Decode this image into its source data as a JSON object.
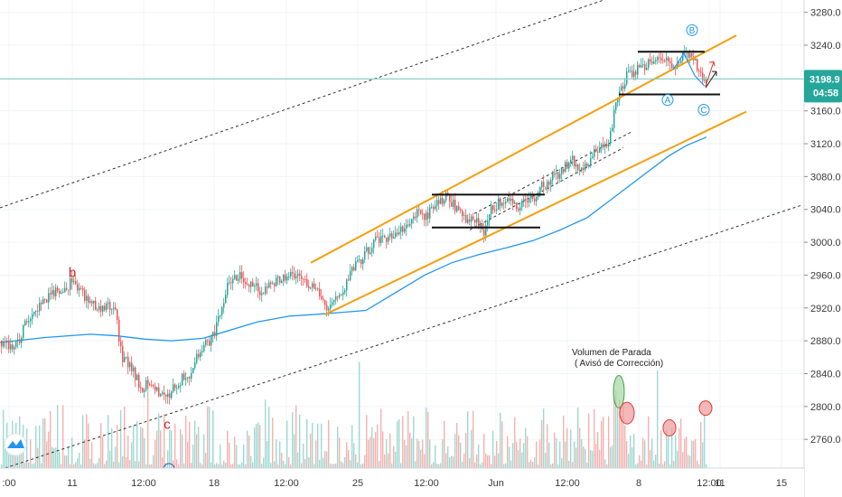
{
  "colors": {
    "background": "#ffffff",
    "grid": "#f0f3fa",
    "candle_up": "#26a69a",
    "candle_down": "#ef5350",
    "vol_up": "#9fd9d1",
    "vol_down": "#f4b2b0",
    "channel": "#f59e0b",
    "ma": "#2196f3",
    "level": "#111111",
    "current_line": "#7ccfc8",
    "price_tag": "#26a69a",
    "wave_red": "#c62828",
    "wave_blue": "#2196f3",
    "ellipse_green": "#a5d6a7",
    "ellipse_red": "#ef9a9a"
  },
  "chart_data": {
    "type": "candlestick",
    "y_axis": {
      "range": [
        2725,
        3295
      ],
      "ticks": [
        "3280.0",
        "3240.0",
        "3200.0",
        "3160.0",
        "3120.0",
        "3080.0",
        "3040.0",
        "3000.0",
        "2960.0",
        "2920.0",
        "2880.0",
        "2840.0",
        "2800.0",
        "2760.0"
      ]
    },
    "x_axis": {
      "range": [
        0,
        932
      ],
      "ticks": [
        {
          "label": ":00",
          "pos": 10
        },
        {
          "label": "11",
          "pos": 80
        },
        {
          "label": "12:00",
          "pos": 159
        },
        {
          "label": "18",
          "pos": 237
        },
        {
          "label": "12:00",
          "pos": 317
        },
        {
          "label": "25",
          "pos": 396
        },
        {
          "label": "12:00",
          "pos": 472
        },
        {
          "label": "Jun",
          "pos": 549
        },
        {
          "label": "12:00",
          "pos": 628
        },
        {
          "label": "8",
          "pos": 707
        },
        {
          "label": "12:00",
          "pos": 785
        },
        {
          "label": "11",
          "pos": 797
        },
        {
          "label": "15",
          "pos": 865
        }
      ]
    },
    "last_price": "3198.9",
    "countdown": "04:58",
    "price_path": [
      [
        0,
        2880
      ],
      [
        15,
        2870
      ],
      [
        30,
        2905
      ],
      [
        50,
        2930
      ],
      [
        70,
        2945
      ],
      [
        80,
        2952
      ],
      [
        95,
        2930
      ],
      [
        110,
        2915
      ],
      [
        125,
        2925
      ],
      [
        135,
        2860
      ],
      [
        145,
        2850
      ],
      [
        155,
        2820
      ],
      [
        165,
        2830
      ],
      [
        175,
        2815
      ],
      [
        185,
        2810
      ],
      [
        195,
        2830
      ],
      [
        210,
        2840
      ],
      [
        220,
        2870
      ],
      [
        232,
        2880
      ],
      [
        240,
        2900
      ],
      [
        250,
        2945
      ],
      [
        262,
        2960
      ],
      [
        275,
        2950
      ],
      [
        290,
        2940
      ],
      [
        305,
        2950
      ],
      [
        320,
        2965
      ],
      [
        335,
        2955
      ],
      [
        350,
        2945
      ],
      [
        362,
        2915
      ],
      [
        375,
        2935
      ],
      [
        390,
        2965
      ],
      [
        405,
        2990
      ],
      [
        420,
        3005
      ],
      [
        435,
        3010
      ],
      [
        450,
        3020
      ],
      [
        462,
        3035
      ],
      [
        470,
        3030
      ],
      [
        482,
        3045
      ],
      [
        495,
        3055
      ],
      [
        505,
        3040
      ],
      [
        515,
        3030
      ],
      [
        525,
        3025
      ],
      [
        535,
        3015
      ],
      [
        545,
        3045
      ],
      [
        560,
        3050
      ],
      [
        575,
        3045
      ],
      [
        590,
        3055
      ],
      [
        605,
        3075
      ],
      [
        618,
        3085
      ],
      [
        632,
        3100
      ],
      [
        645,
        3090
      ],
      [
        658,
        3110
      ],
      [
        672,
        3120
      ],
      [
        685,
        3185
      ],
      [
        695,
        3205
      ],
      [
        707,
        3210
      ],
      [
        720,
        3220
      ],
      [
        732,
        3225
      ],
      [
        745,
        3210
      ],
      [
        755,
        3230
      ],
      [
        765,
        3225
      ],
      [
        775,
        3205
      ],
      [
        781,
        3195
      ]
    ],
    "moving_average": [
      [
        0,
        2878
      ],
      [
        50,
        2884
      ],
      [
        100,
        2888
      ],
      [
        130,
        2886
      ],
      [
        160,
        2882
      ],
      [
        190,
        2880
      ],
      [
        225,
        2883
      ],
      [
        255,
        2893
      ],
      [
        285,
        2903
      ],
      [
        320,
        2910
      ],
      [
        360,
        2913
      ],
      [
        405,
        2917
      ],
      [
        440,
        2940
      ],
      [
        470,
        2960
      ],
      [
        500,
        2975
      ],
      [
        530,
        2985
      ],
      [
        560,
        2993
      ],
      [
        590,
        3002
      ],
      [
        620,
        3015
      ],
      [
        650,
        3030
      ],
      [
        680,
        3055
      ],
      [
        710,
        3080
      ],
      [
        740,
        3105
      ],
      [
        760,
        3118
      ],
      [
        782,
        3128
      ]
    ],
    "channel_upper": [
      [
        344,
        2975
      ],
      [
        815,
        3252
      ]
    ],
    "channel_lower": [
      [
        360,
        2912
      ],
      [
        826,
        3159
      ]
    ],
    "outer_channel_upper": [
      [
        0,
        3042
      ],
      [
        700,
        3307
      ]
    ],
    "outer_channel_lower": [
      [
        0,
        2723
      ],
      [
        887,
        3045
      ]
    ],
    "inner_dashed": [
      [
        525,
        3035
      ],
      [
        700,
        3135
      ]
    ],
    "inner_dashed_2": [
      [
        520,
        3015
      ],
      [
        690,
        3115
      ]
    ],
    "support_lines": [
      {
        "from": [
          478,
          3058
        ],
        "to": [
          603,
          3058
        ]
      },
      {
        "from": [
          478,
          3018
        ],
        "to": [
          598,
          3018
        ]
      },
      {
        "from": [
          706,
          3232
        ],
        "to": [
          780,
          3232
        ]
      },
      {
        "from": [
          685,
          3180
        ],
        "to": [
          797,
          3180
        ]
      }
    ],
    "current_price_line": 3198.9,
    "volume": {
      "max": 100,
      "seed": 13
    },
    "annotations": [
      {
        "text": "Volumen de Parada",
        "x": 633,
        "y": 393
      },
      {
        "text": "( Avisó de Corrección)",
        "x": 636,
        "y": 405
      }
    ],
    "wave_labels": [
      {
        "text": "b",
        "x": 80,
        "y": 2958,
        "style": "red"
      },
      {
        "text": "c",
        "x": 185,
        "y": 2773,
        "style": "red"
      },
      {
        "text": "B",
        "x": 766,
        "y": 3255,
        "style": "blue-circle"
      },
      {
        "text": "A",
        "x": 739,
        "y": 3170,
        "style": "blue-circle"
      },
      {
        "text": "C",
        "x": 779,
        "y": 3158,
        "style": "blue-circle"
      }
    ],
    "ellipses": [
      {
        "x": 685,
        "y": 2818,
        "rx": 6,
        "ry": 18,
        "style": "green"
      },
      {
        "x": 694,
        "y": 2792,
        "rx": 8,
        "ry": 12,
        "style": "red"
      },
      {
        "x": 741,
        "y": 2774,
        "rx": 7,
        "ry": 9,
        "style": "red"
      },
      {
        "x": 781,
        "y": 2798,
        "rx": 7,
        "ry": 8,
        "style": "red"
      }
    ]
  }
}
